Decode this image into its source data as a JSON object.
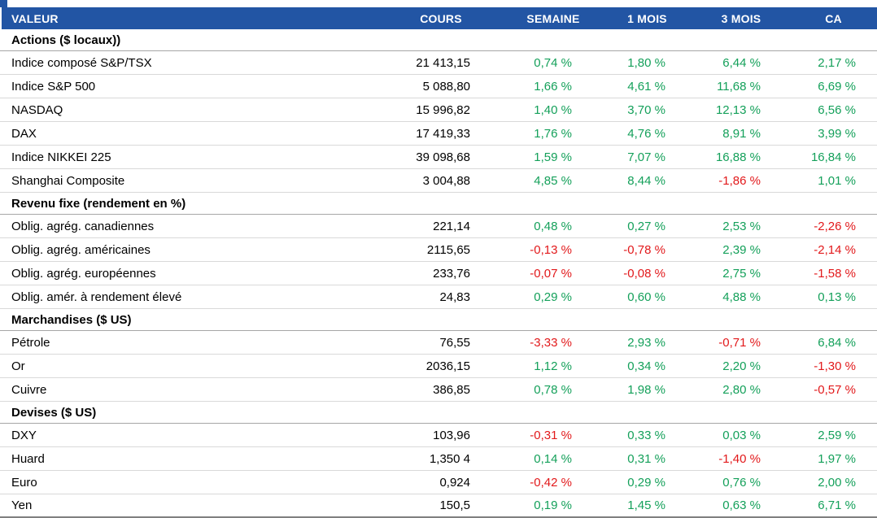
{
  "colors": {
    "header_bg": "#2255A4",
    "positive": "#14A05A",
    "negative": "#E2191B",
    "row_border": "#D9D9D9",
    "section_border": "#A6A6A6",
    "bottom_border": "#7F7F7F",
    "header_text": "#FFFFFF"
  },
  "chart_data": {
    "type": "table",
    "columns": [
      "VALEUR",
      "COURS",
      "SEMAINE",
      "1 MOIS",
      "3 MOIS",
      "CA"
    ],
    "sections": [
      {
        "title": "Actions ($ locaux))",
        "rows": [
          [
            "Indice composé S&P/TSX",
            "21 413,15",
            "0,74 %",
            "1,80 %",
            "6,44 %",
            "2,17 %"
          ],
          [
            "Indice S&P 500",
            "5 088,80",
            "1,66 %",
            "4,61 %",
            "11,68 %",
            "6,69 %"
          ],
          [
            "NASDAQ",
            "15 996,82",
            "1,40 %",
            "3,70 %",
            "12,13 %",
            "6,56 %"
          ],
          [
            "DAX",
            "17 419,33",
            "1,76 %",
            "4,76 %",
            "8,91 %",
            "3,99 %"
          ],
          [
            "Indice NIKKEI 225",
            "39 098,68",
            "1,59 %",
            "7,07 %",
            "16,88 %",
            "16,84 %"
          ],
          [
            "Shanghai Composite",
            "3 004,88",
            "4,85 %",
            "8,44 %",
            "-1,86 %",
            "1,01 %"
          ]
        ]
      },
      {
        "title": "Revenu fixe (rendement en %)",
        "rows": [
          [
            "Oblig. agrég. canadiennes",
            "221,14",
            "0,48 %",
            "0,27 %",
            "2,53 %",
            "-2,26 %"
          ],
          [
            "Oblig. agrég. américaines",
            "2115,65",
            "-0,13 %",
            "-0,78 %",
            "2,39 %",
            "-2,14 %"
          ],
          [
            "Oblig. agrég. européennes",
            "233,76",
            "-0,07 %",
            "-0,08 %",
            "2,75 %",
            "-1,58 %"
          ],
          [
            "Oblig. amér. à rendement élevé",
            "24,83",
            "0,29 %",
            "0,60 %",
            "4,88 %",
            "0,13 %"
          ]
        ]
      },
      {
        "title": "Marchandises ($ US)",
        "rows": [
          [
            "Pétrole",
            "76,55",
            "-3,33 %",
            "2,93 %",
            "-0,71 %",
            "6,84 %"
          ],
          [
            "Or",
            "2036,15",
            "1,12 %",
            "0,34 %",
            "2,20 %",
            "-1,30 %"
          ],
          [
            "Cuivre",
            "386,85",
            "0,78 %",
            "1,98 %",
            "2,80 %",
            "-0,57 %"
          ]
        ]
      },
      {
        "title": "Devises ($ US)",
        "rows": [
          [
            "DXY",
            "103,96",
            "-0,31 %",
            "0,33 %",
            "0,03 %",
            "2,59 %"
          ],
          [
            "Huard",
            "1,350 4",
            "0,14 %",
            "0,31 %",
            "-1,40 %",
            "1,97 %"
          ],
          [
            "Euro",
            "0,924",
            "-0,42 %",
            "0,29 %",
            "0,76 %",
            "2,00 %"
          ],
          [
            "Yen",
            "150,5",
            "0,19 %",
            "1,45 %",
            "0,63 %",
            "6,71 %"
          ]
        ]
      }
    ]
  }
}
